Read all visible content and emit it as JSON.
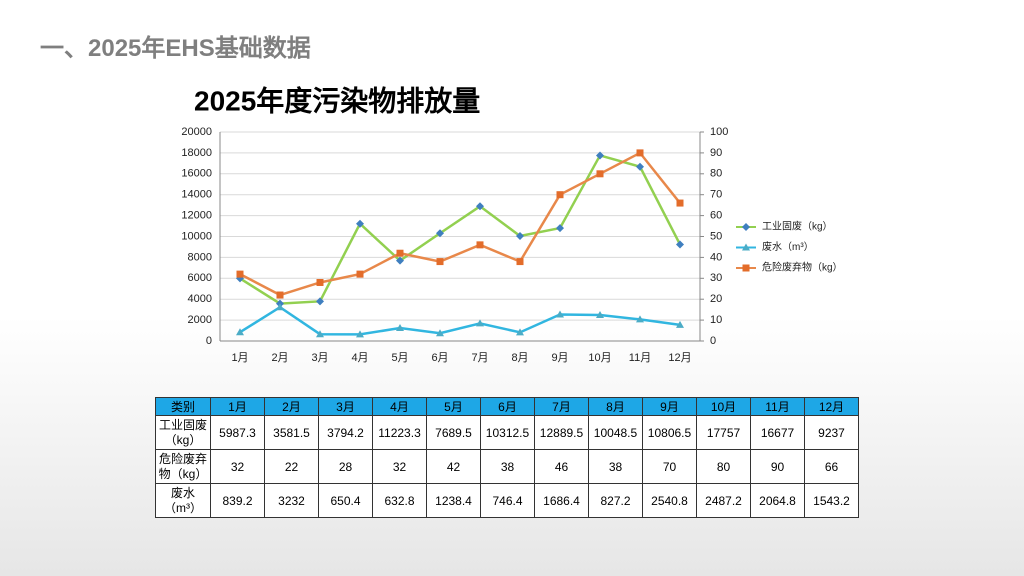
{
  "header": {
    "title": "一、2025年EHS基础数据"
  },
  "chart_data": {
    "type": "line",
    "title": "2025年度污染物排放量",
    "categories": [
      "1月",
      "2月",
      "3月",
      "4月",
      "5月",
      "6月",
      "7月",
      "8月",
      "9月",
      "10月",
      "11月",
      "12月"
    ],
    "series": [
      {
        "name": "工业固废（kg）",
        "color": "#92d050",
        "marker": "diamond",
        "marker_color": "#3f7fbf",
        "values": [
          5987.3,
          3581.5,
          3794.2,
          11223.3,
          7689.5,
          10312.5,
          12889.5,
          10048.5,
          10806.5,
          17757,
          16677,
          9237
        ]
      },
      {
        "name": "废水（m³）",
        "color": "#31b6e0",
        "marker": "triangle",
        "marker_color": "#4bacc6",
        "values": [
          839.2,
          3232,
          650.4,
          632.8,
          1238.4,
          746.4,
          1686.4,
          827.2,
          2540.8,
          2487.2,
          2064.8,
          1543.2
        ]
      },
      {
        "name": "危险废弃物（kg）",
        "color": "#e8884a",
        "marker": "square",
        "marker_color": "#e36c2a",
        "axis": "y2",
        "values": [
          32,
          22,
          28,
          32,
          42,
          38,
          46,
          38,
          70,
          80,
          90,
          66
        ]
      }
    ],
    "ylim": [
      0,
      20000
    ],
    "yticks": [
      0,
      2000,
      4000,
      6000,
      8000,
      10000,
      12000,
      14000,
      16000,
      18000,
      20000
    ],
    "y2lim": [
      0,
      100
    ],
    "y2ticks": [
      0,
      10,
      20,
      30,
      40,
      50,
      60,
      70,
      80,
      90,
      100
    ],
    "grid": true,
    "legend": "right"
  },
  "table": {
    "header": [
      "类别",
      "1月",
      "2月",
      "3月",
      "4月",
      "5月",
      "6月",
      "7月",
      "8月",
      "9月",
      "10月",
      "11月",
      "12月"
    ],
    "rows": [
      [
        "工业固废（kg）",
        5987.3,
        3581.5,
        3794.2,
        11223.3,
        7689.5,
        10312.5,
        12889.5,
        10048.5,
        10806.5,
        17757,
        16677,
        9237
      ],
      [
        "危险废弃物（kg）",
        32,
        22,
        28,
        32,
        42,
        38,
        46,
        38,
        70,
        80,
        90,
        66
      ],
      [
        "废水（m³）",
        839.2,
        3232,
        650.4,
        632.8,
        1238.4,
        746.4,
        1686.4,
        827.2,
        2540.8,
        2487.2,
        2064.8,
        1543.2
      ]
    ]
  }
}
